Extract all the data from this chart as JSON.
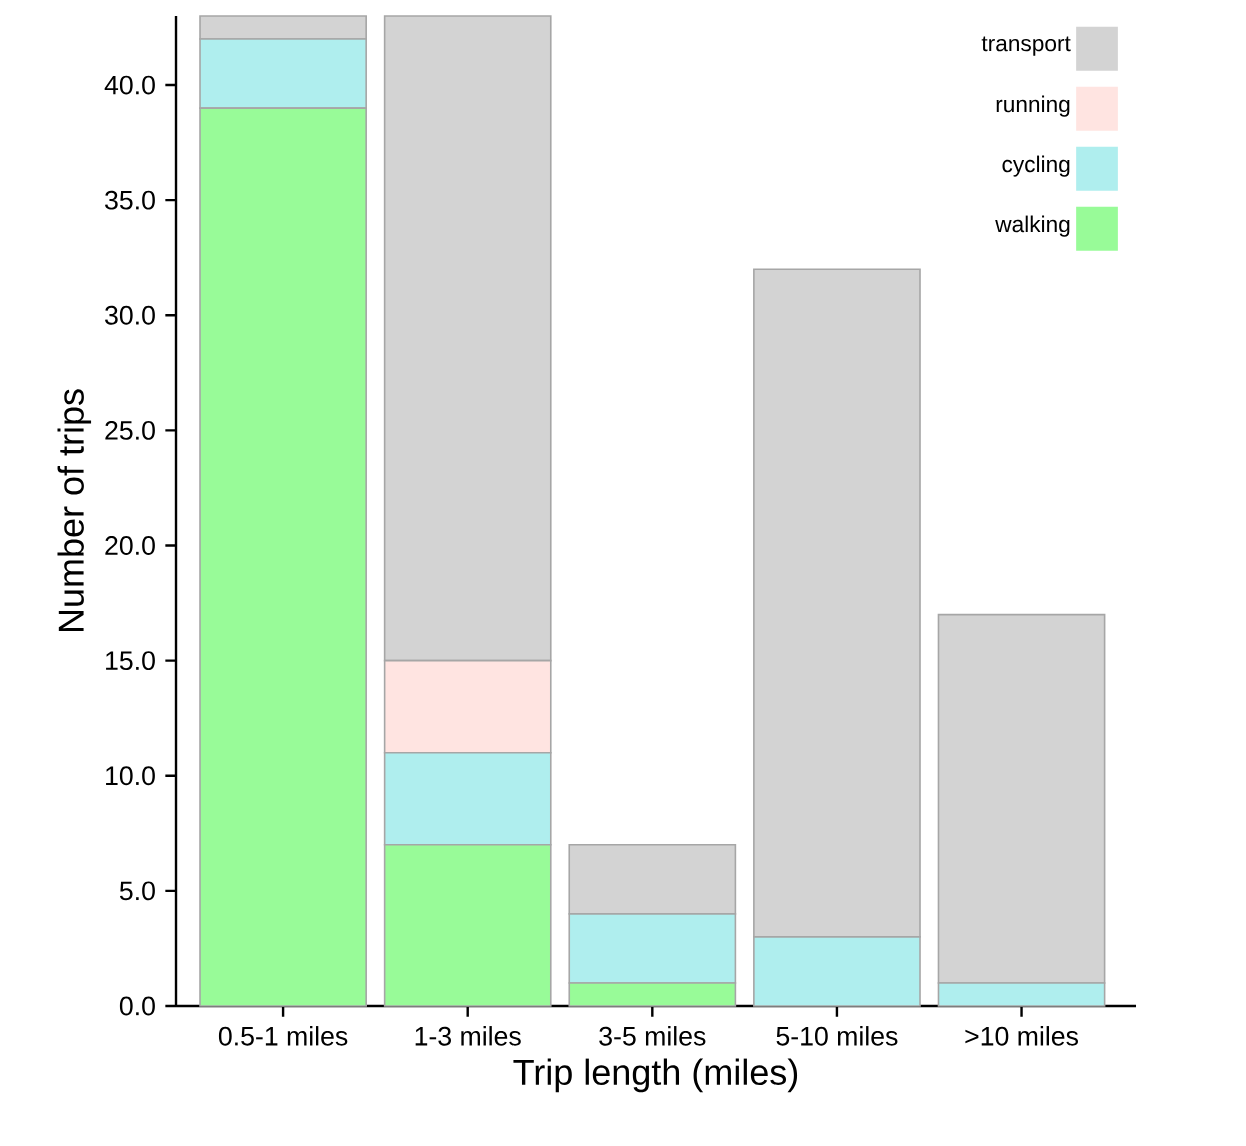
{
  "chart_data": {
    "type": "bar",
    "stacked": true,
    "xlabel": "Trip length (miles)",
    "ylabel": "Number of trips",
    "categories": [
      "0.5-1 miles",
      "1-3 miles",
      "3-5 miles",
      "5-10 miles",
      ">10 miles"
    ],
    "series": [
      {
        "name": "walking",
        "color": "#98fb98",
        "values": [
          39,
          7,
          1,
          0,
          0
        ]
      },
      {
        "name": "cycling",
        "color": "#afeeee",
        "values": [
          3,
          4,
          3,
          3,
          1
        ]
      },
      {
        "name": "running",
        "color": "#ffe4e1",
        "values": [
          0,
          4,
          0,
          0,
          0
        ]
      },
      {
        "name": "transport",
        "color": "#d3d3d3",
        "values": [
          1,
          28,
          3,
          29,
          16
        ]
      }
    ],
    "ylim": [
      0,
      43
    ],
    "yticks": [
      {
        "value": 0,
        "label": "0.0"
      },
      {
        "value": 5,
        "label": "5.0"
      },
      {
        "value": 10,
        "label": "10.0"
      },
      {
        "value": 15,
        "label": "15.0"
      },
      {
        "value": 20,
        "label": "20.0"
      },
      {
        "value": 25,
        "label": "25.0"
      },
      {
        "value": 30,
        "label": "30.0"
      },
      {
        "value": 35,
        "label": "35.0"
      },
      {
        "value": 40,
        "label": "40.0"
      }
    ],
    "legend": "top right"
  }
}
